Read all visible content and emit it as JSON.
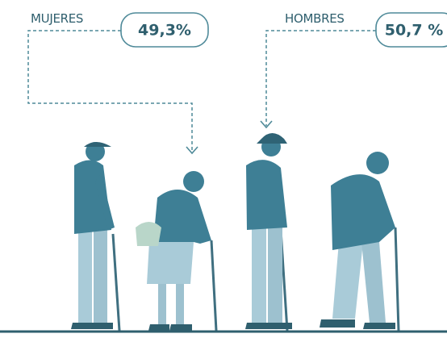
{
  "groups": [
    {
      "label": "MUJERES",
      "share": "49,3%"
    },
    {
      "label": "HOMBRES",
      "share": "50,7 %"
    }
  ]
}
